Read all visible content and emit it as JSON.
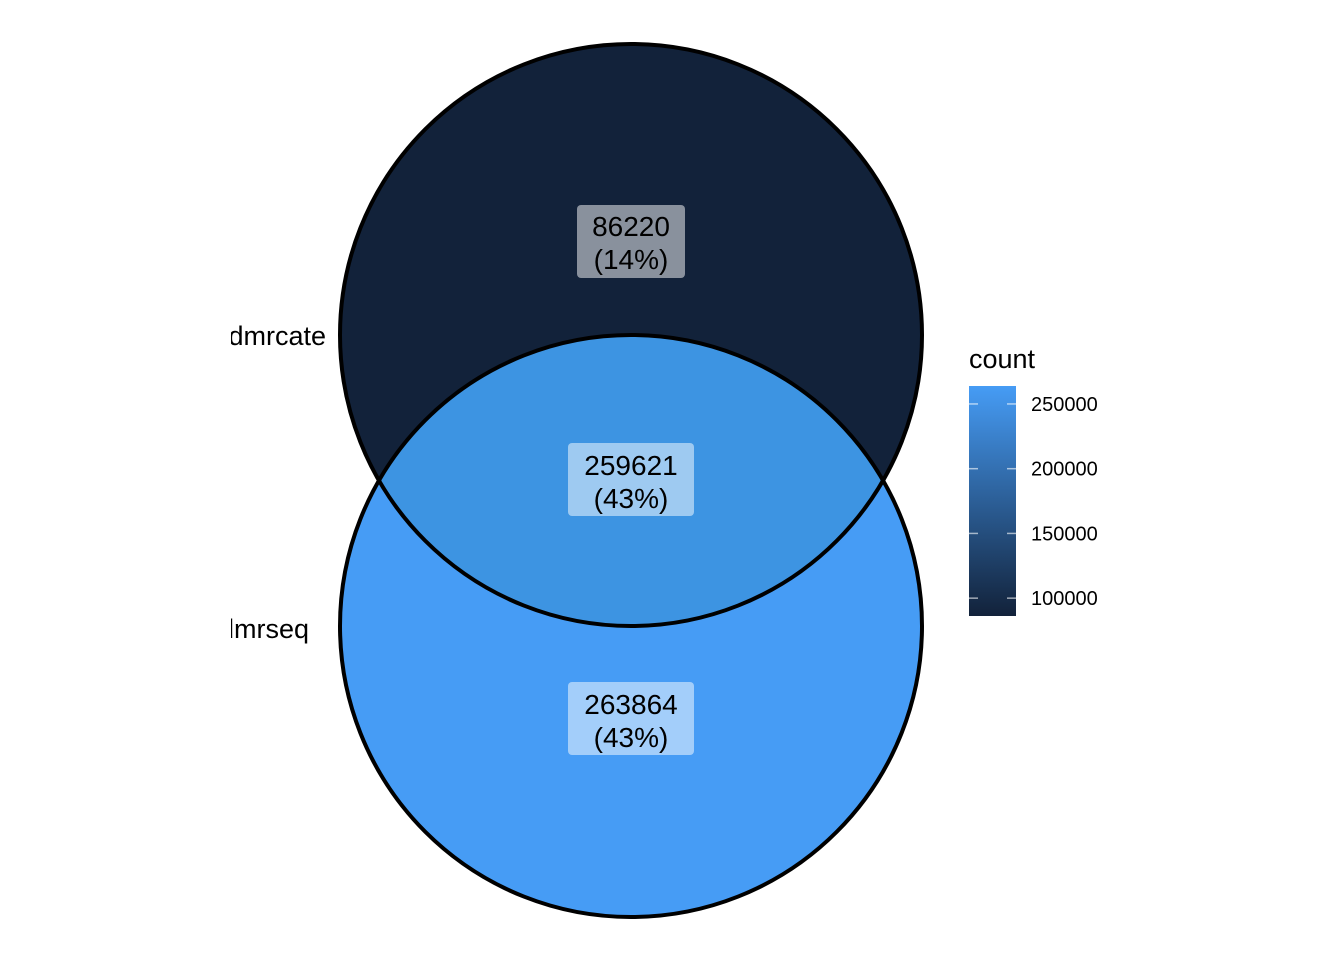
{
  "sets": [
    {
      "label": "dmrcate"
    },
    {
      "label": "dmrseq"
    }
  ],
  "regions": {
    "dmrcate_only": {
      "count": 86220,
      "count_text": "86220",
      "percent_text": "(14%)",
      "fill": "#12223a"
    },
    "both": {
      "count": 259621,
      "count_text": "259621",
      "percent_text": "(43%)",
      "fill": "#3d94e2"
    },
    "dmrseq_only": {
      "count": 263864,
      "count_text": "263864",
      "percent_text": "(43%)",
      "fill": "#469cf5"
    }
  },
  "legend": {
    "title": "count",
    "ticks": [
      "250000",
      "200000",
      "150000",
      "100000"
    ],
    "tick_values": [
      250000,
      200000,
      150000,
      100000
    ],
    "range": [
      86220,
      263864
    ],
    "color_low": "#12223a",
    "color_high": "#469cf5"
  }
}
